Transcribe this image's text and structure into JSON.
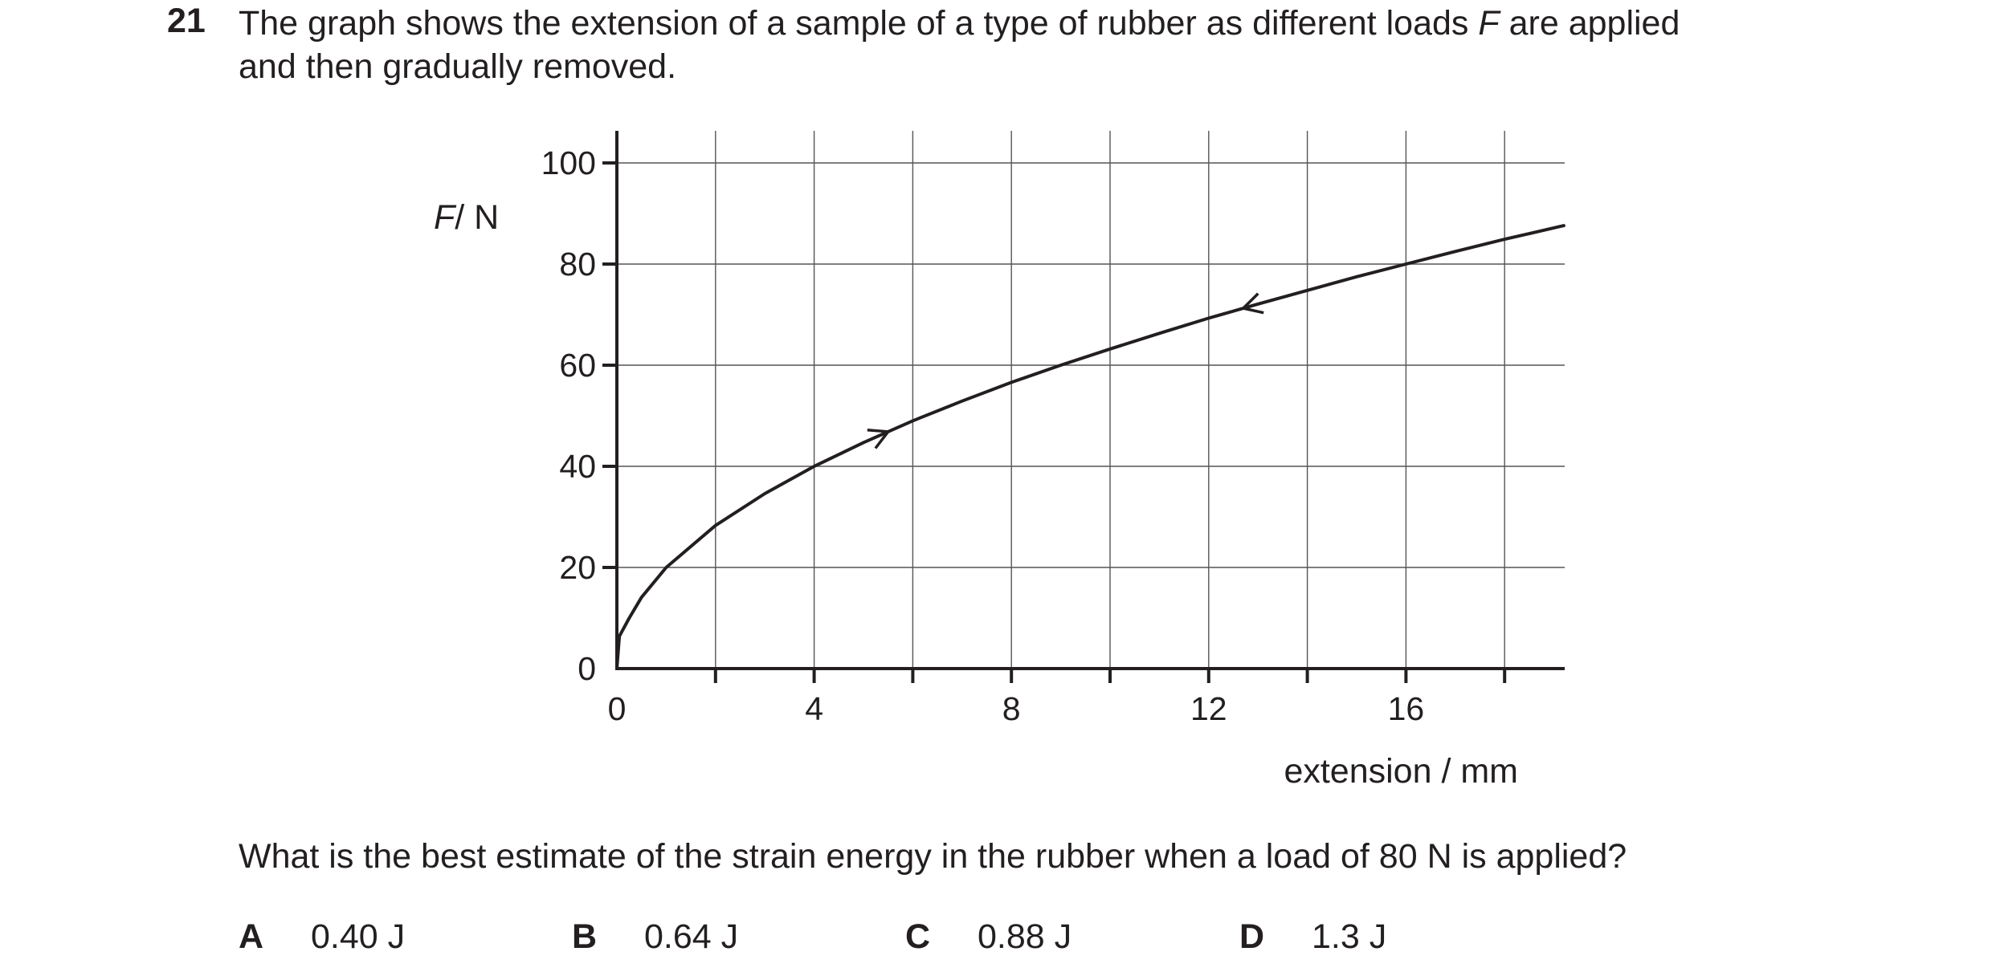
{
  "question": {
    "number": "21",
    "stem_line1_pre": "The graph shows the extension of a sample of a type of rubber as different loads ",
    "stem_var": "F",
    "stem_line1_post": " are applied",
    "stem_line2": "and then gradually removed.",
    "prompt": "What is the best estimate of the strain energy in the rubber when a load of 80 N is applied?",
    "options": [
      {
        "letter": "A",
        "value": "0.40 J"
      },
      {
        "letter": "B",
        "value": "0.64 J"
      },
      {
        "letter": "C",
        "value": "0.88 J"
      },
      {
        "letter": "D",
        "value": "1.3 J"
      }
    ]
  },
  "chart_data": {
    "type": "line",
    "title": "",
    "ylabel_var": "F",
    "ylabel_unit": "/ N",
    "xlabel": "extension / mm",
    "xlim": [
      0,
      19.2
    ],
    "ylim": [
      0,
      106
    ],
    "x_ticks": [
      "0",
      "4",
      "8",
      "12",
      "16"
    ],
    "x_tick_values": [
      0,
      4,
      8,
      12,
      16
    ],
    "y_ticks": [
      "0",
      "20",
      "40",
      "60",
      "80",
      "100"
    ],
    "y_tick_values": [
      0,
      20,
      40,
      60,
      80,
      100
    ],
    "grid": true,
    "x_grid_step": 2,
    "y_grid_step": 20,
    "series": [
      {
        "x": [
          0,
          0.05,
          0.25,
          0.5,
          1,
          2,
          3,
          4,
          5,
          6,
          7,
          8,
          9,
          10,
          11,
          12,
          13,
          14,
          15,
          16,
          17,
          18,
          19.2
        ],
        "y": [
          0,
          6.4,
          10,
          14.1,
          20,
          28.3,
          34.6,
          40,
          44.7,
          49,
          52.9,
          56.6,
          60,
          63.2,
          66.3,
          69.3,
          72.1,
          74.8,
          77.5,
          80,
          82.5,
          84.9,
          87.6
        ]
      }
    ],
    "arrows": [
      {
        "x": 5.5,
        "direction": "up"
      },
      {
        "x": 12.7,
        "direction": "down"
      }
    ]
  }
}
